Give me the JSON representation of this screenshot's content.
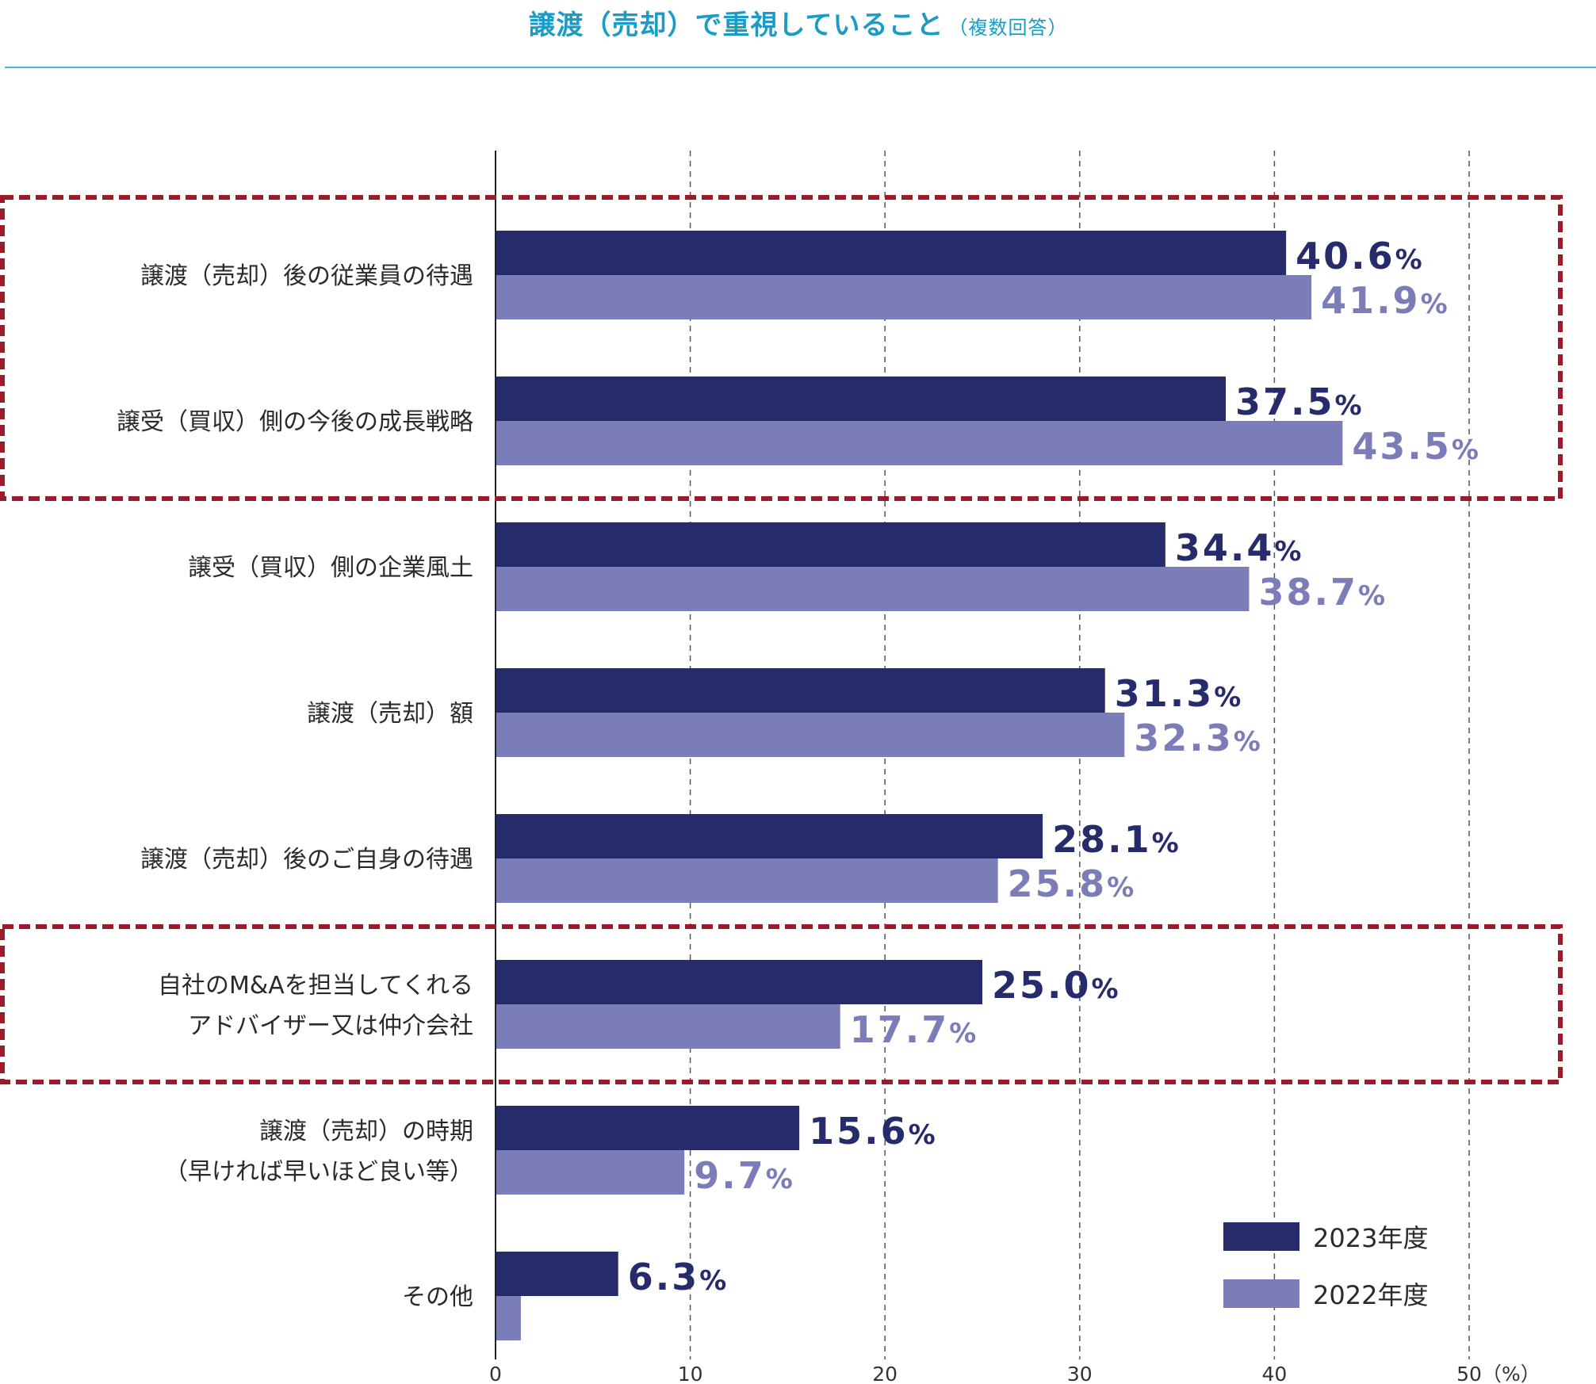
{
  "header": {
    "title": "譲渡（売却）で重視していること",
    "subtitle": "（複数回答）"
  },
  "colors": {
    "series_2023": "#252b6b",
    "series_2022": "#7b7db9",
    "highlight_box": "#9b1b2a",
    "title": "#1a9cc6"
  },
  "chart_data": {
    "type": "bar",
    "orientation": "horizontal",
    "categories": [
      "譲渡（売却）後の従業員の待遇",
      "譲受（買収）側の今後の成長戦略",
      "譲受（買収）側の企業風土",
      "譲渡（売却）額",
      "譲渡（売却）後のご自身の待遇",
      "自社のM&Aを担当してくれる\nアドバイザー又は仲介会社",
      "譲渡（売却）の時期\n（早ければ早いほど良い等）",
      "その他"
    ],
    "series": [
      {
        "name": "2023年度",
        "values": [
          40.6,
          37.5,
          34.4,
          31.3,
          28.1,
          25.0,
          15.6,
          6.3
        ],
        "labels": [
          "40.6",
          "37.5",
          "34.4",
          "31.3",
          "28.1",
          "25.0",
          "15.6",
          "6.3"
        ]
      },
      {
        "name": "2022年度",
        "values": [
          41.9,
          43.5,
          38.7,
          32.3,
          25.8,
          17.7,
          9.7,
          1.3
        ],
        "labels": [
          "41.9",
          "43.5",
          "38.7",
          "32.3",
          "25.8",
          "17.7",
          "9.7",
          ""
        ]
      }
    ],
    "value_unit": "%",
    "xlim": [
      0,
      50
    ],
    "xticks": [
      "0",
      "10",
      "20",
      "30",
      "40",
      "50"
    ],
    "x_unit_label": "（%）",
    "gridlines": "dashed vertical",
    "legend_placement": "bottom-right",
    "highlighted_category_groups": [
      [
        0,
        1
      ],
      [
        5
      ]
    ]
  }
}
